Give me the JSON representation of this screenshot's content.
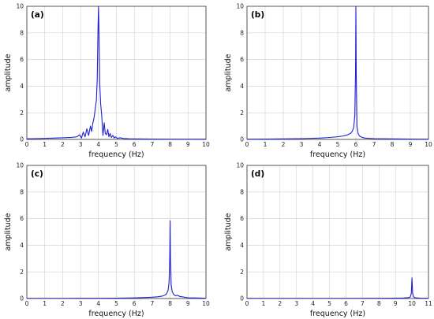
{
  "chart_data": [
    {
      "type": "line",
      "panel_label": "(a)",
      "xlabel": "frequency (Hz)",
      "ylabel": "amplitude",
      "xlim": [
        0,
        10
      ],
      "ylim": [
        0,
        10
      ],
      "xticks": [
        "0",
        "1",
        "2",
        "3",
        "4",
        "5",
        "6",
        "7",
        "8",
        "9",
        "10"
      ],
      "yticks": [
        "0",
        "2",
        "4",
        "6",
        "8",
        "10"
      ],
      "grid": true,
      "color": "#1f1fd6",
      "series": [
        {
          "x": [
            0,
            0.5,
            1.0,
            1.5,
            2.0,
            2.5,
            2.8,
            2.95,
            3.05,
            3.15,
            3.25,
            3.35,
            3.45,
            3.55,
            3.62,
            3.68,
            3.75,
            3.82,
            3.88,
            3.93,
            3.97,
            4.0,
            4.03,
            4.07,
            4.12,
            4.18,
            4.25,
            4.32,
            4.38,
            4.45,
            4.52,
            4.58,
            4.65,
            4.72,
            4.8,
            4.88,
            4.95,
            5.05,
            5.2,
            5.4,
            5.7,
            6.0,
            7.0,
            8.0,
            9.0,
            10.0
          ],
          "y": [
            0.05,
            0.06,
            0.08,
            0.1,
            0.12,
            0.15,
            0.2,
            0.35,
            0.1,
            0.55,
            0.2,
            0.8,
            0.3,
            1.0,
            0.6,
            1.2,
            1.6,
            2.3,
            2.9,
            4.5,
            8.0,
            10.0,
            8.0,
            4.2,
            2.7,
            1.8,
            0.3,
            1.25,
            0.45,
            0.35,
            0.75,
            0.2,
            0.45,
            0.15,
            0.3,
            0.1,
            0.2,
            0.08,
            0.12,
            0.07,
            0.05,
            0.04,
            0.03,
            0.02,
            0.02,
            0.02
          ]
        }
      ]
    },
    {
      "type": "line",
      "panel_label": "(b)",
      "xlabel": "frequency (Hz)",
      "ylabel": "amplitude",
      "xlim": [
        0,
        10
      ],
      "ylim": [
        0,
        10
      ],
      "xticks": [
        "0",
        "1",
        "2",
        "3",
        "4",
        "5",
        "6",
        "7",
        "8",
        "9",
        "10"
      ],
      "yticks": [
        "0",
        "2",
        "4",
        "6",
        "8",
        "10"
      ],
      "grid": true,
      "color": "#1f1fd6",
      "series": [
        {
          "x": [
            0,
            1.0,
            2.0,
            3.0,
            4.0,
            4.5,
            5.0,
            5.3,
            5.5,
            5.7,
            5.8,
            5.88,
            5.94,
            5.98,
            6.0,
            6.02,
            6.06,
            6.12,
            6.2,
            6.35,
            6.5,
            7.0,
            8.0,
            9.0,
            10.0
          ],
          "y": [
            0.02,
            0.03,
            0.04,
            0.06,
            0.1,
            0.14,
            0.2,
            0.26,
            0.32,
            0.45,
            0.6,
            0.9,
            1.8,
            5.0,
            10.0,
            5.0,
            1.0,
            0.45,
            0.25,
            0.15,
            0.1,
            0.06,
            0.04,
            0.03,
            0.02
          ]
        }
      ]
    },
    {
      "type": "line",
      "panel_label": "(c)",
      "xlabel": "frequency (Hz)",
      "ylabel": "amplitude",
      "xlim": [
        0,
        10
      ],
      "ylim": [
        0,
        10
      ],
      "xticks": [
        "0",
        "1",
        "2",
        "3",
        "4",
        "5",
        "6",
        "7",
        "8",
        "9",
        "10"
      ],
      "yticks": [
        "0",
        "2",
        "4",
        "6",
        "8",
        "10"
      ],
      "grid": true,
      "color": "#1f1fd6",
      "series": [
        {
          "x": [
            0,
            1.0,
            2.0,
            3.0,
            4.0,
            5.0,
            6.0,
            6.5,
            7.0,
            7.3,
            7.55,
            7.7,
            7.8,
            7.88,
            7.94,
            7.98,
            8.0,
            8.02,
            8.06,
            8.12,
            8.2,
            8.3,
            8.4,
            8.55,
            8.7,
            9.0,
            10.0
          ],
          "y": [
            0.01,
            0.01,
            0.01,
            0.02,
            0.02,
            0.03,
            0.05,
            0.07,
            0.1,
            0.13,
            0.18,
            0.25,
            0.35,
            0.6,
            1.2,
            3.2,
            5.85,
            3.0,
            1.0,
            0.5,
            0.3,
            0.2,
            0.25,
            0.15,
            0.12,
            0.06,
            0.02
          ]
        }
      ]
    },
    {
      "type": "line",
      "panel_label": "(d)",
      "xlabel": "frequency (Hz)",
      "ylabel": "amplitude",
      "xlim": [
        0,
        11
      ],
      "ylim": [
        0,
        10
      ],
      "xticks": [
        "0",
        "1",
        "2",
        "3",
        "4",
        "5",
        "6",
        "7",
        "8",
        "9",
        "10",
        "11"
      ],
      "yticks": [
        "0",
        "2",
        "4",
        "6",
        "8",
        "10"
      ],
      "grid": true,
      "color": "#1f1fd6",
      "series": [
        {
          "x": [
            0,
            2.0,
            4.0,
            6.0,
            8.0,
            9.0,
            9.5,
            9.8,
            9.9,
            9.96,
            10.0,
            10.04,
            10.1,
            10.2,
            10.5,
            11.0
          ],
          "y": [
            0.01,
            0.01,
            0.01,
            0.01,
            0.02,
            0.03,
            0.04,
            0.07,
            0.12,
            0.4,
            1.55,
            0.4,
            0.12,
            0.06,
            0.03,
            0.02
          ]
        }
      ]
    }
  ]
}
